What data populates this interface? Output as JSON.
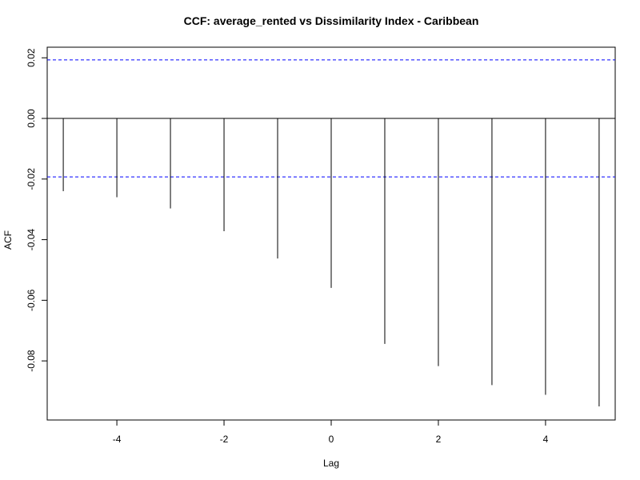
{
  "chart_data": {
    "type": "bar",
    "title": "CCF: average_rented vs Dissimilarity Index - Caribbean",
    "xlabel": "Lag",
    "ylabel": "ACF",
    "x": [
      -5,
      -4,
      -3,
      -2,
      -1,
      0,
      1,
      2,
      3,
      4,
      5
    ],
    "values": [
      -0.024,
      -0.026,
      -0.0297,
      -0.0372,
      -0.0462,
      -0.0559,
      -0.0744,
      -0.0817,
      -0.088,
      -0.0912,
      -0.095
    ],
    "confidence_bound": 0.0193,
    "xlim": [
      -5.3,
      5.3
    ],
    "ylim": [
      -0.0995,
      0.0235
    ],
    "x_ticks": [
      -4,
      -2,
      0,
      2,
      4
    ],
    "x_tick_labels": [
      "-4",
      "-2",
      "0",
      "2",
      "4"
    ],
    "y_ticks": [
      -0.08,
      -0.06,
      -0.04,
      -0.02,
      0.0,
      0.02
    ],
    "y_tick_labels": [
      "-0.08",
      "-0.06",
      "-0.04",
      "-0.02",
      "0.00",
      "0.02"
    ],
    "colors": {
      "bars": "#000000",
      "confidence_lines": "#0000ff",
      "zero_line": "#000000",
      "frame": "#000000"
    },
    "grid": false
  }
}
